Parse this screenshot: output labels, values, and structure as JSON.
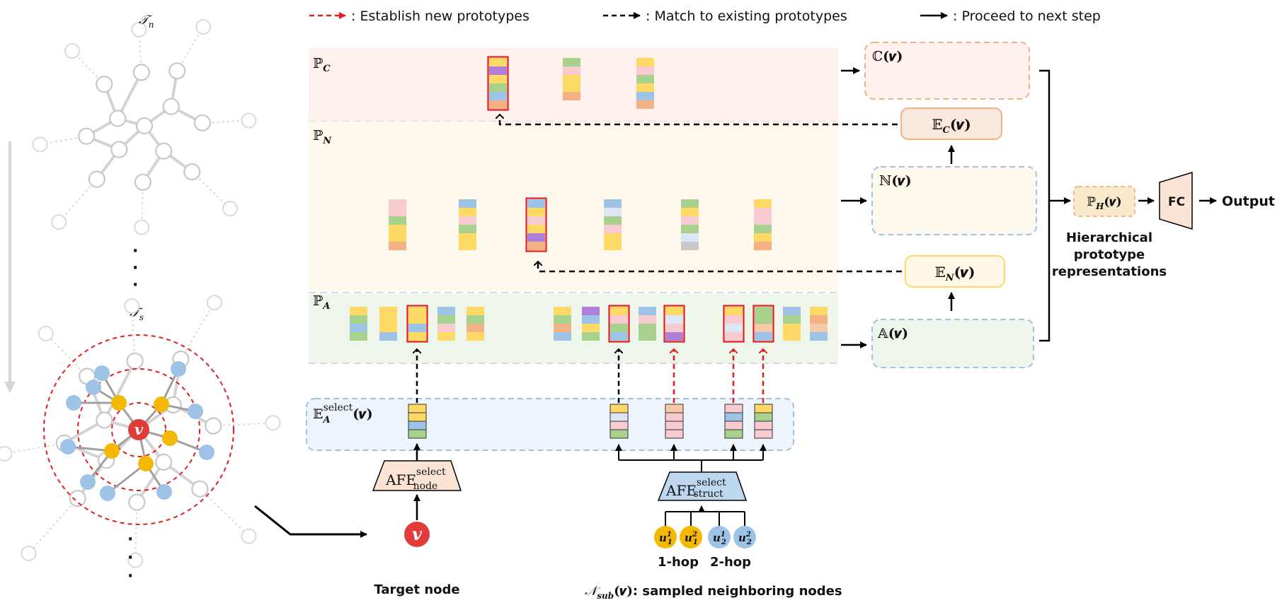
{
  "legend": {
    "red_dashed": ": Establish new prototypes",
    "black_dashed": ": Match to existing prototypes",
    "black_solid": ": Proceed to next step"
  },
  "trees": {
    "top_label": "𝒯",
    "top_sub": "n",
    "bottom_label": "𝒯",
    "bottom_sub": "s",
    "center_node": "v",
    "ellipsis": "·"
  },
  "pools": {
    "c": {
      "symbol": "ℙ",
      "sub": "C"
    },
    "n": {
      "symbol": "ℙ",
      "sub": "N"
    },
    "a": {
      "symbol": "ℙ",
      "sub": "A"
    }
  },
  "select_box": {
    "symbol": "𝔼",
    "sub": "A",
    "sup": "select",
    "arg": "(𝒗)"
  },
  "afe_node": {
    "main": "AFE",
    "sup": "select",
    "sub": "node"
  },
  "afe_struct": {
    "main": "AFE",
    "sup": "select",
    "sub": "struct"
  },
  "target_node": {
    "symbol": "v",
    "caption": "Target node"
  },
  "neighbors": {
    "nodes": [
      {
        "base": "u",
        "sup": "1",
        "sub": "1"
      },
      {
        "base": "u",
        "sup": "2",
        "sub": "1"
      },
      {
        "base": "u",
        "sup": "1",
        "sub": "2"
      },
      {
        "base": "u",
        "sup": "2",
        "sub": "2"
      }
    ],
    "hop1": "1-hop",
    "hop2": "2-hop",
    "caption_symbol": "𝒩",
    "caption_sub": "sub",
    "caption_arg": "(𝒗)",
    "caption_text": ": sampled neighboring nodes"
  },
  "right": {
    "cv": {
      "symbol": "ℂ",
      "arg": "(𝒗)"
    },
    "ec": {
      "symbol": "𝔼",
      "sub": "C",
      "arg": "(𝒗)"
    },
    "nv": {
      "symbol": "ℕ",
      "arg": "(𝒗)"
    },
    "en": {
      "symbol": "𝔼",
      "sub": "N",
      "arg": "(𝒗)"
    },
    "av": {
      "symbol": "𝔸",
      "arg": "(𝒗)"
    },
    "ph": {
      "symbol": "ℙ",
      "sub": "H",
      "arg": "(𝒗)"
    },
    "fc": "FC",
    "output": "Output",
    "caption": [
      "Hierarchical",
      "prototype",
      "representations"
    ]
  },
  "colors": {
    "yellow": "#FFD965",
    "blue": "#9DC3E6",
    "green": "#A9D18E",
    "pink": "#F8CBD0",
    "orange": "#F4B183",
    "purple": "#B07FD9",
    "gray": "#C9C9C9",
    "lightblue": "#DCE6F5",
    "peach": "#F6C9A8",
    "red": "#E02020"
  }
}
